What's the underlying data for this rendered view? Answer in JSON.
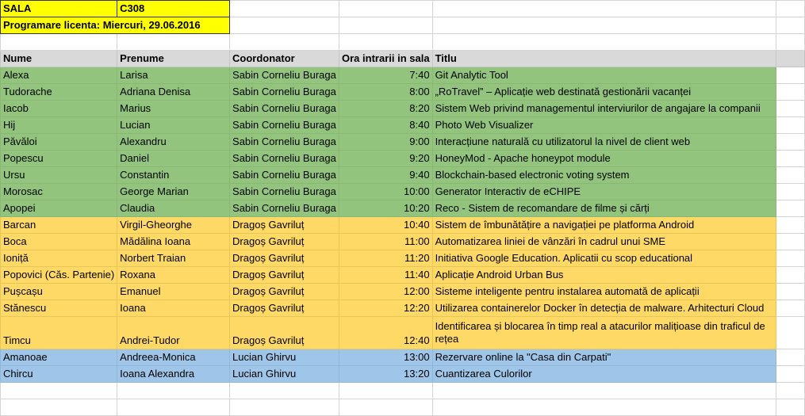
{
  "sala_label": "SALA",
  "sala_value": "C308",
  "programare": "Programare licenta: Miercuri, 29.06.2016",
  "headers": [
    "Nume",
    "Prenume",
    "Coordonator",
    "Ora intrarii in sala",
    "Titlu"
  ],
  "rows": [
    {
      "nume": "Alexa",
      "prenume": "Larisa",
      "coord": "Sabin Corneliu Buraga",
      "ora": "7:40",
      "titlu": "Git Analytic Tool"
    },
    {
      "nume": "Tudorache",
      "prenume": "Adriana Denisa",
      "coord": "Sabin Corneliu Buraga",
      "ora": "8:00",
      "titlu": "„RoTravel” – Aplicație web destinată gestionării vacanței"
    },
    {
      "nume": "Iacob",
      "prenume": "Marius",
      "coord": "Sabin Corneliu Buraga",
      "ora": "8:20",
      "titlu": "Sistem Web privind managementul interviurilor de angajare la companii"
    },
    {
      "nume": "Hij",
      "prenume": "Lucian",
      "coord": "Sabin Corneliu Buraga",
      "ora": "8:40",
      "titlu": "Photo Web Visualizer"
    },
    {
      "nume": "Păvăloi",
      "prenume": "Alexandru",
      "coord": "Sabin Corneliu Buraga",
      "ora": "9:00",
      "titlu": "Interacțiune naturală cu utilizatorul la nivel de client web"
    },
    {
      "nume": "Popescu",
      "prenume": "Daniel",
      "coord": "Sabin Corneliu Buraga",
      "ora": "9:20",
      "titlu": "HoneyMod - Apache honeypot module"
    },
    {
      "nume": "Ursu",
      "prenume": "Constantin",
      "coord": "Sabin Corneliu Buraga",
      "ora": "9:40",
      "titlu": "Blockchain-based electronic voting system"
    },
    {
      "nume": "Morosac",
      "prenume": "George Marian",
      "coord": "Sabin Corneliu Buraga",
      "ora": "10:00",
      "titlu": "Generator Interactiv de eCHIPE"
    },
    {
      "nume": "Apopei",
      "prenume": "Claudia",
      "coord": "Sabin Corneliu Buraga",
      "ora": "10:20",
      "titlu": "Reco - Sistem de recomandare de filme și cărți"
    },
    {
      "nume": "Barcan",
      "prenume": "Virgil-Gheorghe",
      "coord": "Dragoș Gavriluț",
      "ora": "10:40",
      "titlu": "Sistem de îmbunătățire a navigației pe platforma Android"
    },
    {
      "nume": "Boca",
      "prenume": "Mădălina Ioana",
      "coord": "Dragoș Gavriluț",
      "ora": "11:00",
      "titlu": "Automatizarea liniei de vânzări în cadrul unui SME"
    },
    {
      "nume": "Ioniță",
      "prenume": "Norbert Traian",
      "coord": "Dragoș Gavriluț",
      "ora": "11:20",
      "titlu": "Initiativa Google Education. Aplicatii cu scop educational"
    },
    {
      "nume": "Popovici (Căs. Partenie)",
      "prenume": "Roxana",
      "coord": "Dragoș Gavriluț",
      "ora": "11:40",
      "titlu": "Aplicație Android Urban Bus"
    },
    {
      "nume": "Pușcașu",
      "prenume": "Emanuel",
      "coord": "Dragoș Gavriluț",
      "ora": "12:00",
      "titlu": "Sisteme inteligente pentru instalarea automată de aplicații"
    },
    {
      "nume": "Stănescu",
      "prenume": "Ioana",
      "coord": "Dragoș Gavriluț",
      "ora": "12:20",
      "titlu": "Utilizarea containerelor Docker în detecția de malware. Arhitecturi Cloud"
    },
    {
      "nume": "Timcu",
      "prenume": "Andrei-Tudor",
      "coord": "Dragoș Gavriluț",
      "ora": "12:40",
      "titlu": "Identificarea și blocarea în timp real a atacurilor malițioase din traficul de rețea"
    },
    {
      "nume": "Amanoae",
      "prenume": "Andreea-Monica",
      "coord": "Lucian Ghirvu",
      "ora": "13:00",
      "titlu": "Rezervare online la \"Casa din Carpati\""
    },
    {
      "nume": "Chircu",
      "prenume": "Ioana Alexandra",
      "coord": "Lucian Ghirvu",
      "ora": "13:20",
      "titlu": "Cuantizarea Culorilor"
    }
  ],
  "colors": {
    "green": "#93c47d",
    "orange": "#ffd966",
    "blue": "#9fc5e8",
    "yellow": "#ffff00",
    "header": "#d9d9d9"
  }
}
